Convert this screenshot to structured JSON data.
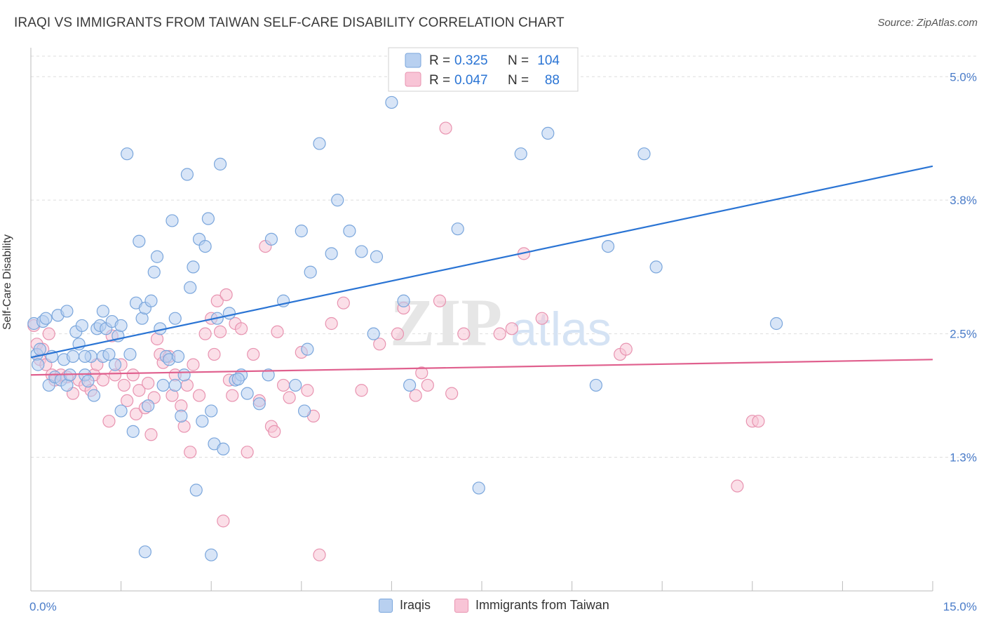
{
  "title": "IRAQI VS IMMIGRANTS FROM TAIWAN SELF-CARE DISABILITY CORRELATION CHART",
  "source": "Source: ZipAtlas.com",
  "watermark": {
    "zip": "ZIP",
    "atlas": "atlas"
  },
  "colors": {
    "blue_fill": "#b8d0f0",
    "blue_stroke": "#7aa6dc",
    "blue_line": "#2a74d4",
    "pink_fill": "#f8c4d6",
    "pink_stroke": "#e893b0",
    "pink_line": "#e0608e",
    "axis_text": "#4a7cc9",
    "grid": "#dddddd"
  },
  "legend_box": {
    "rows": [
      {
        "r_label": "R =",
        "r_value": "0.325",
        "n_label": "N =",
        "n_value": "104",
        "color": "blue"
      },
      {
        "r_label": "R =",
        "r_value": "0.047",
        "n_label": "N =",
        "n_value": "88",
        "color": "pink"
      }
    ]
  },
  "chart_data": {
    "type": "scatter",
    "xlabel": "",
    "ylabel": "Self-Care Disability",
    "xlim": [
      0,
      15
    ],
    "ylim": [
      0,
      5.2
    ],
    "x_ticks_labels": [
      "0.0%",
      "15.0%"
    ],
    "y_ticks": [
      1.3,
      2.5,
      3.8,
      5.0
    ],
    "y_ticks_labels": [
      "1.3%",
      "2.5%",
      "3.8%",
      "5.0%"
    ],
    "grid": "horizontal dashed",
    "series": [
      {
        "name": "Iraqis",
        "color": "blue",
        "trend": {
          "x": [
            0,
            15
          ],
          "y": [
            2.27,
            4.13
          ]
        },
        "points": [
          [
            0.05,
            2.6
          ],
          [
            0.1,
            2.3
          ],
          [
            0.12,
            2.2
          ],
          [
            0.15,
            2.35
          ],
          [
            0.2,
            2.62
          ],
          [
            0.25,
            2.65
          ],
          [
            0.3,
            2.0
          ],
          [
            0.35,
            2.28
          ],
          [
            0.4,
            2.08
          ],
          [
            0.45,
            2.68
          ],
          [
            0.5,
            2.05
          ],
          [
            0.55,
            2.25
          ],
          [
            0.6,
            2.0
          ],
          [
            0.65,
            2.1
          ],
          [
            0.7,
            2.28
          ],
          [
            0.75,
            2.52
          ],
          [
            0.8,
            2.4
          ],
          [
            0.85,
            2.58
          ],
          [
            0.9,
            2.1
          ],
          [
            0.95,
            2.04
          ],
          [
            1.0,
            2.28
          ],
          [
            1.05,
            1.9
          ],
          [
            1.1,
            2.55
          ],
          [
            1.15,
            2.58
          ],
          [
            1.2,
            2.28
          ],
          [
            1.25,
            2.55
          ],
          [
            1.3,
            2.3
          ],
          [
            1.35,
            2.62
          ],
          [
            1.4,
            2.2
          ],
          [
            1.45,
            2.48
          ],
          [
            1.5,
            1.75
          ],
          [
            1.6,
            4.25
          ],
          [
            1.65,
            2.3
          ],
          [
            1.7,
            1.55
          ],
          [
            1.75,
            2.8
          ],
          [
            1.8,
            3.4
          ],
          [
            1.85,
            2.65
          ],
          [
            1.9,
            2.75
          ],
          [
            1.95,
            1.8
          ],
          [
            2.0,
            2.82
          ],
          [
            2.05,
            3.1
          ],
          [
            2.1,
            3.25
          ],
          [
            2.15,
            2.55
          ],
          [
            2.2,
            2.0
          ],
          [
            2.25,
            2.28
          ],
          [
            2.3,
            2.25
          ],
          [
            2.35,
            3.6
          ],
          [
            2.4,
            2.65
          ],
          [
            2.45,
            2.28
          ],
          [
            2.5,
            1.7
          ],
          [
            2.55,
            2.1
          ],
          [
            2.6,
            4.05
          ],
          [
            2.65,
            2.95
          ],
          [
            2.7,
            3.15
          ],
          [
            2.75,
            0.98
          ],
          [
            2.8,
            3.42
          ],
          [
            2.85,
            1.65
          ],
          [
            2.9,
            3.35
          ],
          [
            2.95,
            3.62
          ],
          [
            3.0,
            1.75
          ],
          [
            3.05,
            1.43
          ],
          [
            3.1,
            2.65
          ],
          [
            3.15,
            4.15
          ],
          [
            3.2,
            1.38
          ],
          [
            3.3,
            2.7
          ],
          [
            3.4,
            2.05
          ],
          [
            3.5,
            2.1
          ],
          [
            3.6,
            1.92
          ],
          [
            3.8,
            1.82
          ],
          [
            3.95,
            2.1
          ],
          [
            4.0,
            3.42
          ],
          [
            4.2,
            2.82
          ],
          [
            4.4,
            2.0
          ],
          [
            4.5,
            3.5
          ],
          [
            4.55,
            1.75
          ],
          [
            4.6,
            2.35
          ],
          [
            4.65,
            3.1
          ],
          [
            4.8,
            4.35
          ],
          [
            5.0,
            3.28
          ],
          [
            5.1,
            3.8
          ],
          [
            5.3,
            3.5
          ],
          [
            5.5,
            3.3
          ],
          [
            5.7,
            2.5
          ],
          [
            5.75,
            3.25
          ],
          [
            6.2,
            2.82
          ],
          [
            6.0,
            4.75
          ],
          [
            6.3,
            2.0
          ],
          [
            7.1,
            3.52
          ],
          [
            7.45,
            1.0
          ],
          [
            8.15,
            4.25
          ],
          [
            8.6,
            4.45
          ],
          [
            9.4,
            2.0
          ],
          [
            9.6,
            3.35
          ],
          [
            10.2,
            4.25
          ],
          [
            10.4,
            3.15
          ],
          [
            12.4,
            2.6
          ],
          [
            1.5,
            2.58
          ],
          [
            1.2,
            2.72
          ],
          [
            0.6,
            2.72
          ],
          [
            0.9,
            2.28
          ],
          [
            2.4,
            2.0
          ],
          [
            3.0,
            0.35
          ],
          [
            1.9,
            0.38
          ],
          [
            3.45,
            2.06
          ]
        ]
      },
      {
        "name": "Immigrants from Taiwan",
        "color": "pink",
        "trend": {
          "x": [
            0,
            15
          ],
          "y": [
            2.1,
            2.25
          ]
        },
        "points": [
          [
            0.05,
            2.58
          ],
          [
            0.1,
            2.4
          ],
          [
            0.15,
            2.25
          ],
          [
            0.2,
            2.35
          ],
          [
            0.25,
            2.2
          ],
          [
            0.3,
            2.5
          ],
          [
            0.35,
            2.1
          ],
          [
            0.4,
            2.05
          ],
          [
            0.5,
            2.1
          ],
          [
            0.6,
            2.08
          ],
          [
            0.7,
            1.92
          ],
          [
            0.8,
            2.05
          ],
          [
            0.9,
            2.0
          ],
          [
            1.0,
            1.95
          ],
          [
            1.05,
            2.1
          ],
          [
            1.1,
            2.2
          ],
          [
            1.2,
            2.05
          ],
          [
            1.3,
            1.65
          ],
          [
            1.35,
            2.48
          ],
          [
            1.4,
            2.1
          ],
          [
            1.5,
            2.2
          ],
          [
            1.55,
            2.0
          ],
          [
            1.6,
            1.85
          ],
          [
            1.7,
            2.1
          ],
          [
            1.75,
            1.72
          ],
          [
            1.8,
            1.95
          ],
          [
            1.9,
            1.78
          ],
          [
            1.95,
            2.02
          ],
          [
            2.0,
            1.52
          ],
          [
            2.05,
            1.88
          ],
          [
            2.1,
            2.45
          ],
          [
            2.15,
            2.3
          ],
          [
            2.2,
            2.22
          ],
          [
            2.3,
            2.28
          ],
          [
            2.35,
            1.9
          ],
          [
            2.4,
            2.1
          ],
          [
            2.5,
            1.8
          ],
          [
            2.55,
            1.6
          ],
          [
            2.6,
            2.0
          ],
          [
            2.65,
            1.35
          ],
          [
            2.7,
            2.2
          ],
          [
            2.8,
            1.9
          ],
          [
            2.9,
            2.5
          ],
          [
            3.0,
            2.65
          ],
          [
            3.05,
            2.3
          ],
          [
            3.1,
            2.82
          ],
          [
            3.15,
            2.52
          ],
          [
            3.2,
            0.68
          ],
          [
            3.25,
            2.88
          ],
          [
            3.3,
            2.05
          ],
          [
            3.35,
            1.9
          ],
          [
            3.4,
            2.6
          ],
          [
            3.5,
            2.55
          ],
          [
            3.6,
            1.35
          ],
          [
            3.7,
            2.3
          ],
          [
            3.8,
            1.85
          ],
          [
            3.9,
            3.35
          ],
          [
            4.0,
            1.6
          ],
          [
            4.05,
            1.55
          ],
          [
            4.1,
            2.52
          ],
          [
            4.2,
            2.0
          ],
          [
            4.3,
            1.88
          ],
          [
            4.5,
            2.32
          ],
          [
            4.6,
            1.95
          ],
          [
            4.7,
            1.7
          ],
          [
            4.8,
            0.35
          ],
          [
            5.0,
            2.6
          ],
          [
            5.2,
            2.8
          ],
          [
            5.5,
            1.95
          ],
          [
            5.8,
            2.4
          ],
          [
            6.1,
            2.5
          ],
          [
            6.2,
            2.75
          ],
          [
            6.4,
            1.9
          ],
          [
            6.5,
            2.12
          ],
          [
            6.6,
            2.0
          ],
          [
            6.8,
            2.82
          ],
          [
            6.9,
            4.5
          ],
          [
            7.0,
            1.92
          ],
          [
            7.2,
            2.5
          ],
          [
            7.8,
            2.5
          ],
          [
            8.0,
            2.55
          ],
          [
            8.2,
            3.28
          ],
          [
            8.5,
            2.65
          ],
          [
            9.8,
            2.3
          ],
          [
            9.9,
            2.35
          ],
          [
            12.0,
            1.65
          ],
          [
            12.1,
            1.65
          ],
          [
            11.75,
            1.02
          ]
        ]
      }
    ]
  },
  "bottom_legend": [
    {
      "label": "Iraqis",
      "color": "blue"
    },
    {
      "label": "Immigrants from Taiwan",
      "color": "pink"
    }
  ]
}
